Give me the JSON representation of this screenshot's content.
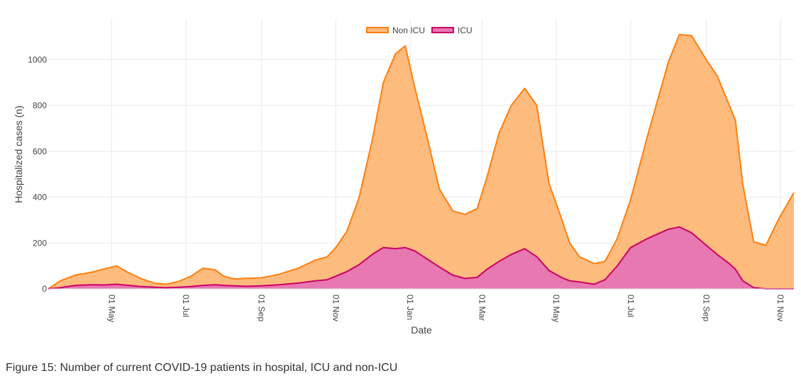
{
  "caption": "Figure 15: Number of current COVID-19 patients in hospital, ICU and non-ICU",
  "chart_data": {
    "type": "area",
    "stacked": true,
    "xlabel": "Date",
    "ylabel": "Hospitalized cases (n)",
    "ylim": [
      0,
      1180
    ],
    "yticks": [
      0,
      200,
      400,
      600,
      800,
      1000
    ],
    "xlim": [
      "2020-03-10",
      "2021-11-12"
    ],
    "xticks": [
      {
        "label": "01 May",
        "date": "2020-05-01"
      },
      {
        "label": "01 Jul",
        "date": "2020-07-01"
      },
      {
        "label": "01 Sep",
        "date": "2020-09-01"
      },
      {
        "label": "01 Nov",
        "date": "2020-11-01"
      },
      {
        "label": "01 Jan",
        "date": "2021-01-01"
      },
      {
        "label": "01 Mar",
        "date": "2021-03-01"
      },
      {
        "label": "01 May",
        "date": "2021-05-01"
      },
      {
        "label": "01 Jul",
        "date": "2021-07-01"
      },
      {
        "label": "01 Sep",
        "date": "2021-09-01"
      },
      {
        "label": "01 Nov",
        "date": "2021-11-01"
      }
    ],
    "grid": true,
    "legend_position": "top-center",
    "x": [
      "2020-03-10",
      "2020-03-20",
      "2020-04-01",
      "2020-04-15",
      "2020-04-25",
      "2020-05-05",
      "2020-05-15",
      "2020-05-25",
      "2020-06-05",
      "2020-06-15",
      "2020-06-25",
      "2020-07-05",
      "2020-07-15",
      "2020-07-25",
      "2020-08-01",
      "2020-08-10",
      "2020-08-20",
      "2020-09-01",
      "2020-09-15",
      "2020-10-01",
      "2020-10-15",
      "2020-10-25",
      "2020-11-01",
      "2020-11-10",
      "2020-11-20",
      "2020-12-01",
      "2020-12-10",
      "2020-12-20",
      "2020-12-28",
      "2021-01-05",
      "2021-01-15",
      "2021-01-25",
      "2021-02-05",
      "2021-02-15",
      "2021-02-25",
      "2021-03-05",
      "2021-03-15",
      "2021-03-25",
      "2021-04-05",
      "2021-04-15",
      "2021-04-25",
      "2021-05-05",
      "2021-05-12",
      "2021-05-20",
      "2021-06-01",
      "2021-06-10",
      "2021-06-20",
      "2021-07-01",
      "2021-07-15",
      "2021-08-01",
      "2021-08-10",
      "2021-08-20",
      "2021-09-01",
      "2021-09-10",
      "2021-09-20",
      "2021-09-25",
      "2021-10-01",
      "2021-10-10",
      "2021-10-20",
      "2021-10-30",
      "2021-11-12"
    ],
    "series": [
      {
        "name": "Non ICU",
        "color": "#ff7f0e",
        "fill": "#fdbb7e",
        "values": [
          0,
          30,
          45,
          55,
          70,
          80,
          55,
          35,
          18,
          15,
          25,
          45,
          75,
          65,
          40,
          30,
          35,
          35,
          45,
          65,
          90,
          100,
          125,
          175,
          290,
          500,
          720,
          850,
          880,
          710,
          530,
          340,
          280,
          280,
          300,
          400,
          560,
          650,
          700,
          660,
          380,
          260,
          165,
          110,
          90,
          80,
          120,
          210,
          450,
          730,
          840,
          860,
          810,
          780,
          690,
          650,
          420,
          200,
          190,
          300,
          420
        ]
      },
      {
        "name": "ICU",
        "color": "#cc0066",
        "fill": "#e778b1",
        "values": [
          0,
          5,
          15,
          18,
          17,
          20,
          15,
          10,
          7,
          5,
          7,
          10,
          15,
          18,
          15,
          13,
          11,
          13,
          18,
          25,
          35,
          40,
          55,
          75,
          105,
          150,
          180,
          175,
          180,
          165,
          130,
          95,
          60,
          45,
          50,
          85,
          120,
          150,
          175,
          140,
          80,
          50,
          35,
          30,
          20,
          40,
          100,
          180,
          220,
          260,
          270,
          245,
          190,
          150,
          110,
          85,
          35,
          5,
          0,
          0,
          0
        ]
      }
    ]
  }
}
